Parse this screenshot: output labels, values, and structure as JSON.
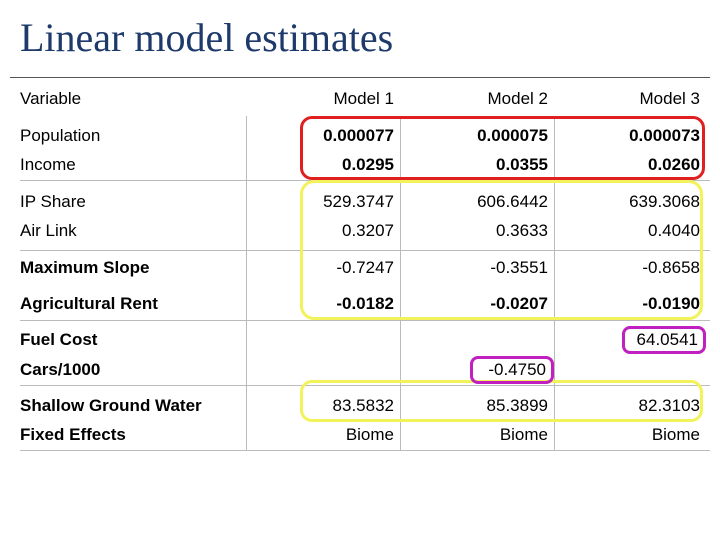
{
  "title": "Linear model estimates",
  "header": {
    "variable": "Variable",
    "models": [
      "Model 1",
      "Model 2",
      "Model 3"
    ]
  },
  "rows": [
    {
      "label": "Population",
      "values": [
        "0.000077",
        "0.000075",
        "0.000073"
      ],
      "bold_values": true
    },
    {
      "label": "Income",
      "values": [
        "0.0295",
        "0.0355",
        "0.0260"
      ],
      "bold_values": true
    },
    {
      "label": "IP Share",
      "values": [
        "529.3747",
        "606.6442",
        "639.3068"
      ],
      "bold_values": false
    },
    {
      "label": "Air Link",
      "values": [
        "0.3207",
        "0.3633",
        "0.4040"
      ],
      "bold_values": false
    },
    {
      "label": "Maximum Slope",
      "values": [
        "-0.7247",
        "-0.3551",
        "-0.8658"
      ],
      "bold_values": false
    },
    {
      "label": "Agricultural Rent",
      "values": [
        "-0.0182",
        "-0.0207",
        "-0.0190"
      ],
      "bold_values": true
    },
    {
      "label": "Fuel Cost",
      "values": [
        "",
        "",
        "64.0541"
      ],
      "bold_values": false
    },
    {
      "label": "Cars/1000",
      "values": [
        "",
        "-0.4750",
        ""
      ],
      "bold_values": false
    },
    {
      "label": "Shallow Ground Water",
      "values": [
        "83.5832",
        "85.3899",
        "82.3103"
      ],
      "bold_values": false
    },
    {
      "label": "Fixed Effects",
      "values": [
        "Biome",
        "Biome",
        "Biome"
      ],
      "bold_values": false
    }
  ],
  "highlight_colors": {
    "red": "#e02020",
    "yellow": "#f2f25a",
    "purple": "#c020c0"
  }
}
